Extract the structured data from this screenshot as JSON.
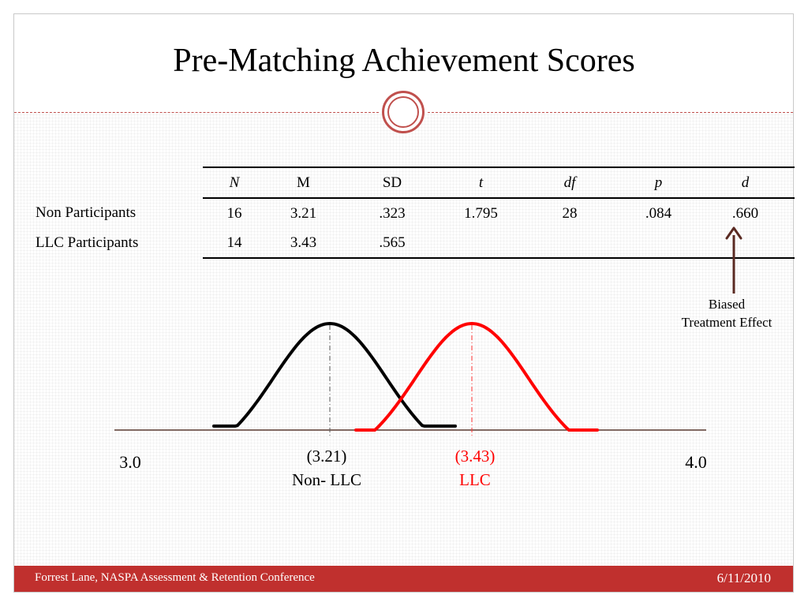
{
  "slide": {
    "title": "Pre-Matching Achievement Scores",
    "footer_left": "Forrest Lane, NASPA Assessment & Retention Conference",
    "footer_right": "6/11/2010",
    "accent_color": "#c0302e"
  },
  "table": {
    "headers": [
      "N",
      "M",
      "SD",
      "t",
      "df",
      "p",
      "d"
    ],
    "rows": [
      {
        "label": "Non Participants",
        "cells": [
          "16",
          "3.21",
          ".323",
          "1.795",
          "28",
          ".084",
          ".660"
        ]
      },
      {
        "label": "LLC Participants",
        "cells": [
          "14",
          "3.43",
          ".565",
          "",
          "",
          "",
          ""
        ]
      }
    ]
  },
  "annotation": {
    "line1": "Biased",
    "line2": "Treatment Effect",
    "arrow_color": "#5a2a22"
  },
  "chart_data": {
    "type": "line",
    "xlim": [
      3.0,
      4.0
    ],
    "axis_labels": {
      "min": "3.0",
      "max": "4.0"
    },
    "series": [
      {
        "mean": 3.21,
        "color": "#000000",
        "label_value": "(3.21)",
        "label_group": "Non- LLC"
      },
      {
        "mean": 3.43,
        "color": "#ff0000",
        "label_value": "(3.43)",
        "label_group": "LLC"
      }
    ]
  }
}
